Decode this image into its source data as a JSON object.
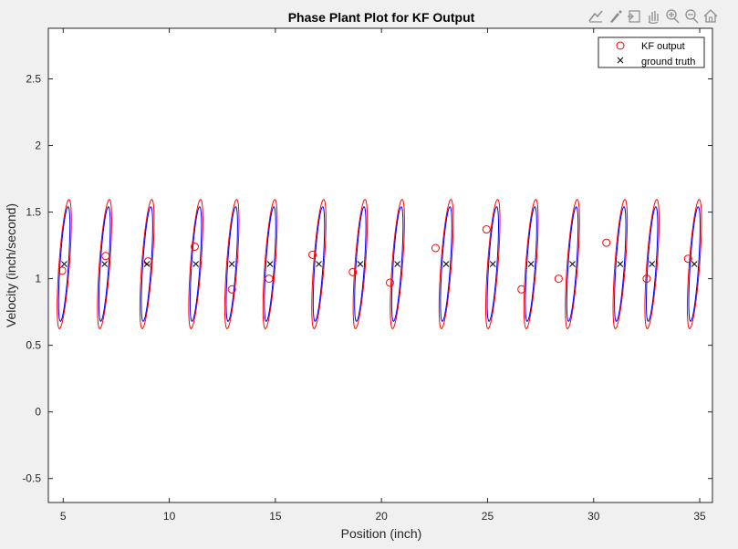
{
  "toolbar": {
    "icons": [
      "data-tips-icon",
      "brush-icon",
      "export-icon",
      "pan-icon",
      "zoom-in-icon",
      "zoom-out-icon",
      "home-icon"
    ],
    "color": "#8c8c8c"
  },
  "chart_data": {
    "type": "scatter",
    "title": "Phase Plant Plot for KF Output",
    "xlabel": "Position (inch)",
    "ylabel": "Velocity (inch/second)",
    "xlim": [
      4.3,
      35.6
    ],
    "ylim": [
      -0.68,
      2.88
    ],
    "xticks": [
      5,
      10,
      15,
      20,
      25,
      30,
      35
    ],
    "yticks": [
      -0.5,
      0,
      0.5,
      1,
      1.5,
      2,
      2.5
    ],
    "grid": false,
    "legend_position": "top-right",
    "legend": [
      "KF output",
      "ground truth"
    ],
    "colors": {
      "kf": "#ff0000",
      "truth": "#000000",
      "ellipse_outer": "#ff0000",
      "ellipse_inner": "#0000ff"
    },
    "series": [
      {
        "name": "KF output",
        "marker": "circle",
        "x": [
          4.95,
          7.0,
          9.0,
          11.2,
          12.95,
          14.7,
          16.75,
          18.65,
          20.4,
          22.55,
          24.95,
          26.6,
          28.35,
          30.6,
          32.5,
          34.45
        ],
        "y": [
          1.06,
          1.17,
          1.13,
          1.24,
          0.92,
          1.0,
          1.18,
          1.05,
          0.97,
          1.23,
          1.37,
          0.92,
          1.0,
          1.27,
          1.0,
          1.15
        ]
      },
      {
        "name": "ground truth",
        "marker": "x",
        "x": [
          5.05,
          6.95,
          8.95,
          11.25,
          12.95,
          14.75,
          17.05,
          19.0,
          20.75,
          23.05,
          25.25,
          27.05,
          29.0,
          31.25,
          32.75,
          34.75
        ],
        "y": [
          1.11,
          1.11,
          1.11,
          1.11,
          1.11,
          1.11,
          1.11,
          1.11,
          1.11,
          1.11,
          1.11,
          1.11,
          1.11,
          1.11,
          1.11,
          1.11
        ]
      }
    ],
    "ellipses": {
      "centers_x": [
        5.05,
        6.95,
        8.95,
        11.25,
        12.95,
        14.75,
        17.05,
        19.0,
        20.75,
        23.05,
        25.25,
        27.05,
        29.0,
        31.25,
        32.75,
        34.75
      ],
      "center_y": 1.11,
      "outer": {
        "x_halfwidth": 0.45,
        "y_halfheight": 0.485
      },
      "inner": {
        "x_halfwidth": 0.36,
        "y_halfheight": 0.43
      }
    }
  }
}
